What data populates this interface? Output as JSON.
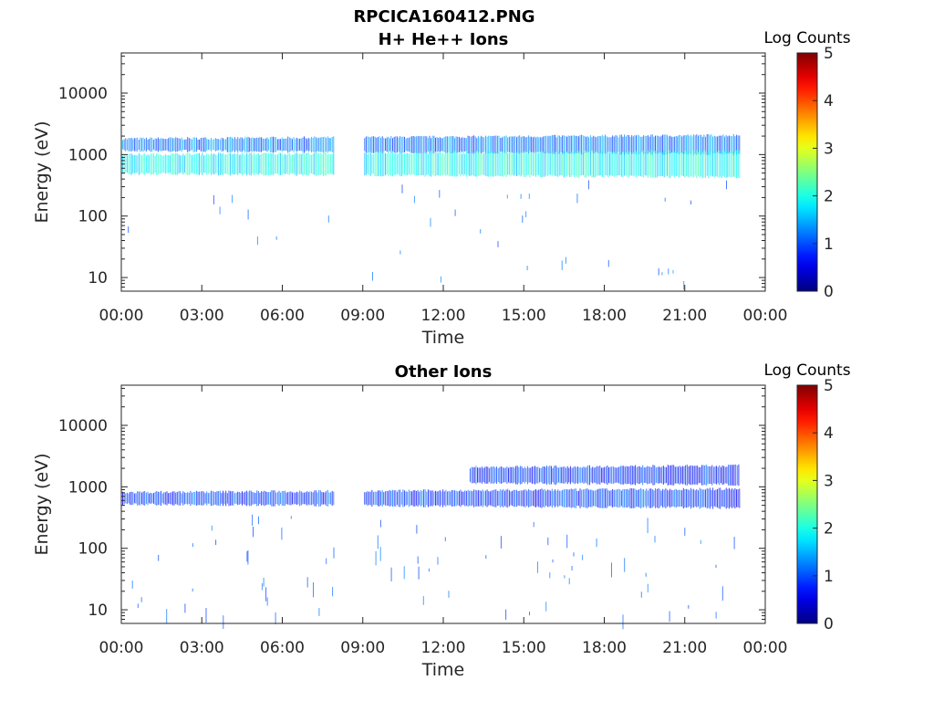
{
  "figure_title": "RPCICA160412.PNG",
  "chart_data": [
    {
      "type": "heatmap",
      "title": "H+ He++ Ions",
      "xlabel": "Time",
      "ylabel": "Energy (eV)",
      "x_ticks": [
        "00:00",
        "03:00",
        "06:00",
        "09:00",
        "12:00",
        "15:00",
        "18:00",
        "21:00",
        "00:00"
      ],
      "xlim_hours": [
        0,
        24
      ],
      "y_ticks": [
        10,
        100,
        1000,
        10000
      ],
      "y_tick_labels": [
        "10",
        "100",
        "1000",
        "10000"
      ],
      "ylim": [
        6,
        45000
      ],
      "yscale": "log",
      "colorbar": {
        "title": "Log Counts",
        "ticks": [
          "0",
          "1",
          "2",
          "3",
          "4",
          "5"
        ],
        "range": [
          0,
          5
        ],
        "colormap": "jet"
      },
      "data_gaps_hours": [
        [
          7.95,
          9.05
        ]
      ],
      "data_end_hours": 23.05,
      "bands": [
        {
          "energy_center_eV": 1450,
          "from_hour": 0.05,
          "to_hour": 23.05,
          "log_counts": 1.2
        },
        {
          "energy_center_eV": 700,
          "from_hour": 0.05,
          "to_hour": 23.05,
          "log_counts": 1.9
        }
      ]
    },
    {
      "type": "heatmap",
      "title": "Other Ions",
      "xlabel": "Time",
      "ylabel": "Energy (eV)",
      "x_ticks": [
        "00:00",
        "03:00",
        "06:00",
        "09:00",
        "12:00",
        "15:00",
        "18:00",
        "21:00",
        "00:00"
      ],
      "xlim_hours": [
        0,
        24
      ],
      "y_ticks": [
        10,
        100,
        1000,
        10000
      ],
      "y_tick_labels": [
        "10",
        "100",
        "1000",
        "10000"
      ],
      "ylim": [
        6,
        45000
      ],
      "yscale": "log",
      "colorbar": {
        "title": "Log Counts",
        "ticks": [
          "0",
          "1",
          "2",
          "3",
          "4",
          "5"
        ],
        "range": [
          0,
          5
        ],
        "colormap": "jet"
      },
      "data_gaps_hours": [
        [
          7.95,
          9.05
        ]
      ],
      "data_end_hours": 23.05,
      "bands": [
        {
          "energy_center_eV": 650,
          "from_hour": 0.05,
          "to_hour": 23.05,
          "log_counts": 0.9
        },
        {
          "energy_center_eV": 1550,
          "from_hour": 13.0,
          "to_hour": 23.05,
          "log_counts": 0.8
        }
      ]
    }
  ]
}
